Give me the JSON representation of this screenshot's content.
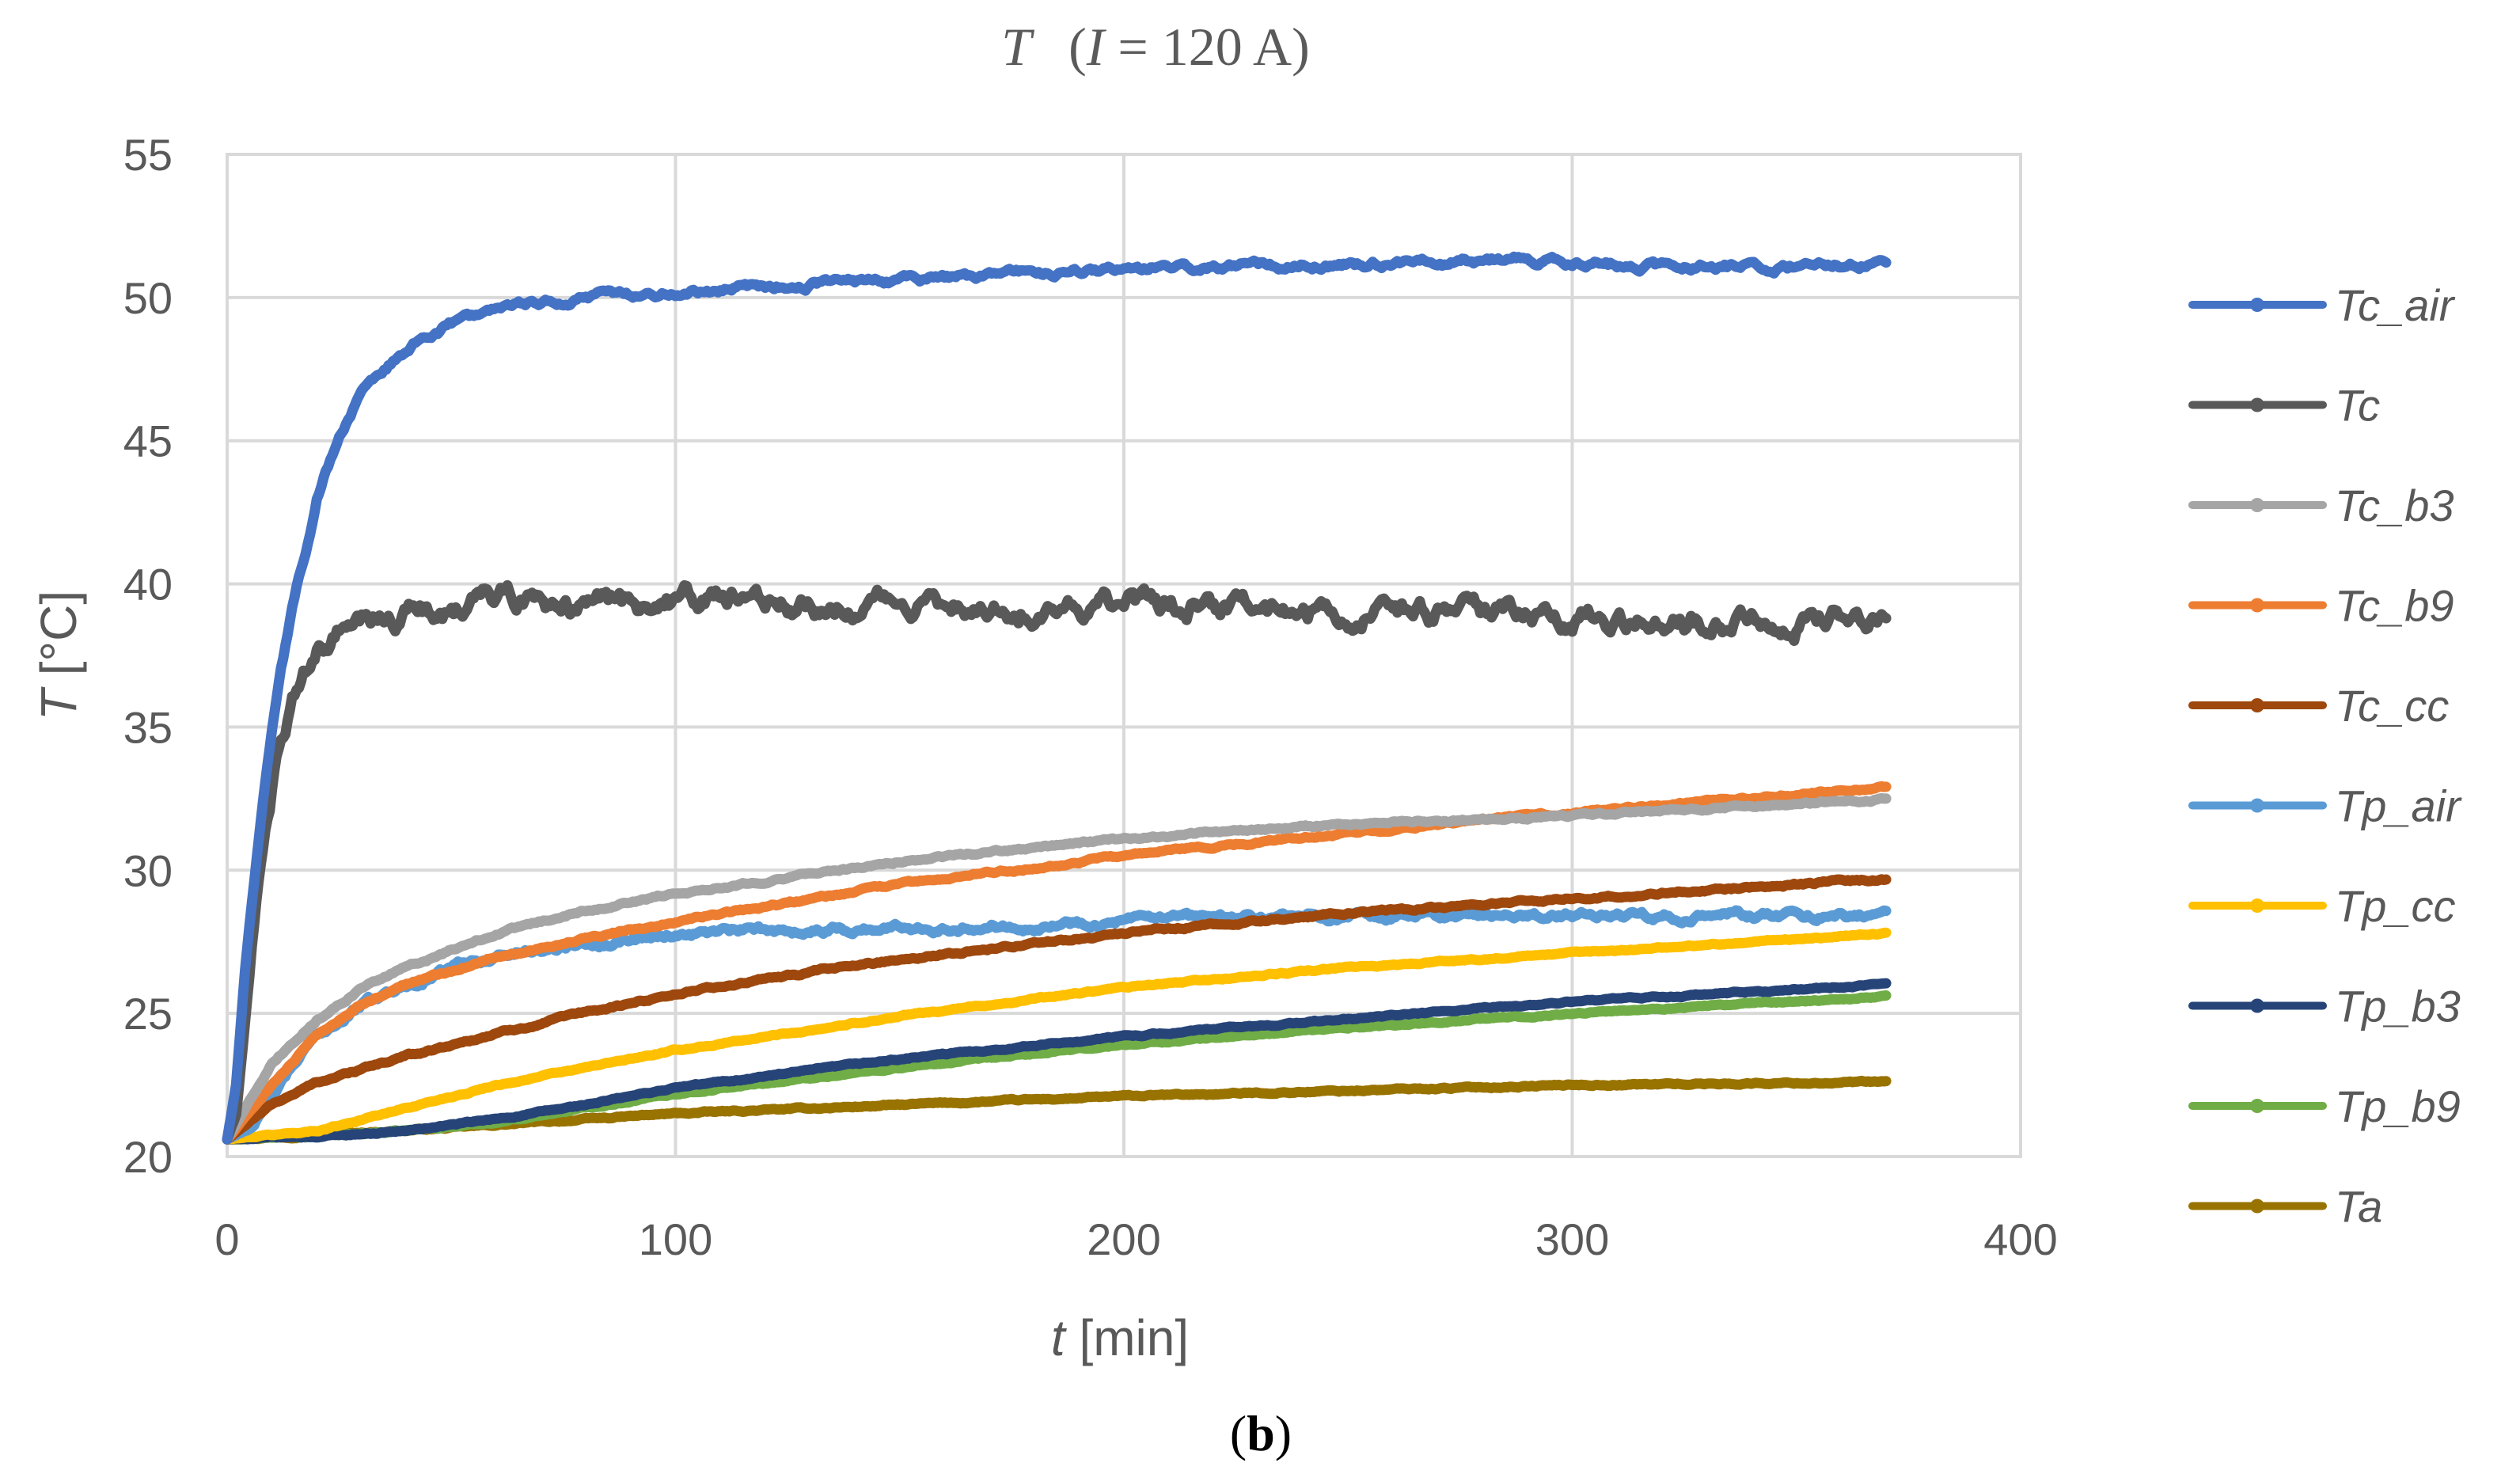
{
  "figure_caption": {
    "open": "(",
    "letter": "b",
    "close": ")"
  },
  "chart_data": {
    "type": "line",
    "title": {
      "var": "T",
      "open": "(",
      "ivar": "I",
      "rest": " = 120 A)"
    },
    "xlabel": {
      "var": "t",
      "unit": " [min]"
    },
    "ylabel": {
      "var": "T",
      "unit": " [°C]"
    },
    "xlim": [
      0,
      400
    ],
    "ylim": [
      20,
      55
    ],
    "xticks": [
      0,
      100,
      200,
      300,
      400
    ],
    "yticks": [
      20,
      25,
      30,
      35,
      40,
      45,
      50,
      55
    ],
    "grid": true,
    "legend_position": "right",
    "series": [
      {
        "name": "Tc_air",
        "color": "#4472C4",
        "noise": 0.08,
        "x": [
          0,
          2,
          4,
          6,
          8,
          10,
          12,
          15,
          18,
          20,
          25,
          30,
          35,
          40,
          45,
          50,
          60,
          70,
          80,
          90,
          100,
          120,
          150,
          200,
          250,
          290,
          300,
          320,
          370
        ],
        "y": [
          20.6,
          22.5,
          26.5,
          29.5,
          32.5,
          35.0,
          37.0,
          39.5,
          41.5,
          43.0,
          45.2,
          46.6,
          47.5,
          48.2,
          48.7,
          49.1,
          49.5,
          49.8,
          50.0,
          50.1,
          50.2,
          50.4,
          50.6,
          51.0,
          51.2,
          51.3,
          51.2,
          51.1,
          51.1
        ]
      },
      {
        "name": "Tc",
        "color": "#595959",
        "noise": 0.25,
        "x": [
          0,
          2,
          4,
          6,
          8,
          10,
          12,
          15,
          20,
          25,
          30,
          40,
          50,
          60,
          70,
          80,
          100,
          150,
          200,
          250,
          300,
          330,
          370
        ],
        "y": [
          20.6,
          21.5,
          24.5,
          28.0,
          31.0,
          33.0,
          34.5,
          36.0,
          37.5,
          38.2,
          38.5,
          38.9,
          39.2,
          39.5,
          39.4,
          39.2,
          39.4,
          39.3,
          39.3,
          39.1,
          38.9,
          38.6,
          38.8
        ]
      },
      {
        "name": "Tc_b3",
        "color": "#A5A5A5",
        "noise": 0.03,
        "x": [
          0,
          10,
          20,
          30,
          40,
          60,
          80,
          100,
          150,
          200,
          250,
          300,
          370
        ],
        "y": [
          20.6,
          23.3,
          24.8,
          25.9,
          26.6,
          27.8,
          28.6,
          29.2,
          30.3,
          31.1,
          31.6,
          31.9,
          32.5
        ]
      },
      {
        "name": "Tc_b9",
        "color": "#ED7D31",
        "noise": 0.03,
        "x": [
          0,
          10,
          20,
          30,
          40,
          60,
          80,
          100,
          150,
          200,
          250,
          300,
          370
        ],
        "y": [
          20.6,
          22.5,
          24.2,
          25.3,
          26.0,
          27.0,
          27.6,
          28.2,
          29.5,
          30.5,
          31.3,
          32.0,
          32.9
        ]
      },
      {
        "name": "Tc_cc",
        "color": "#9E480E",
        "noise": 0.03,
        "x": [
          0,
          10,
          20,
          40,
          60,
          80,
          100,
          150,
          200,
          250,
          300,
          370
        ],
        "y": [
          20.6,
          21.8,
          22.6,
          23.5,
          24.3,
          25.0,
          25.7,
          26.9,
          27.8,
          28.5,
          29.0,
          29.7
        ]
      },
      {
        "name": "Tp_air",
        "color": "#5B9BD5",
        "noise": 0.08,
        "x": [
          0,
          5,
          10,
          15,
          20,
          30,
          40,
          50,
          60,
          80,
          100,
          150,
          200,
          250,
          300,
          370
        ],
        "y": [
          20.6,
          21.0,
          22.0,
          23.2,
          24.2,
          25.3,
          26.0,
          26.6,
          27.0,
          27.5,
          27.8,
          28.0,
          28.2,
          28.4,
          28.4,
          28.4
        ]
      },
      {
        "name": "Tp_cc",
        "color": "#FFC000",
        "noise": 0.02,
        "x": [
          0,
          20,
          40,
          60,
          80,
          100,
          150,
          200,
          250,
          300,
          370
        ],
        "y": [
          20.6,
          20.9,
          21.7,
          22.5,
          23.1,
          23.7,
          24.9,
          25.9,
          26.6,
          27.1,
          27.8
        ]
      },
      {
        "name": "Tp_b3",
        "color": "#264478",
        "noise": 0.02,
        "x": [
          0,
          20,
          40,
          60,
          80,
          100,
          150,
          200,
          250,
          300,
          370
        ],
        "y": [
          20.6,
          20.7,
          20.9,
          21.3,
          21.8,
          22.4,
          23.4,
          24.2,
          24.8,
          25.4,
          26.0
        ]
      },
      {
        "name": "Tp_b9",
        "color": "#70AD47",
        "noise": 0.02,
        "x": [
          0,
          20,
          40,
          60,
          80,
          100,
          150,
          200,
          250,
          300,
          370
        ],
        "y": [
          20.6,
          20.7,
          20.9,
          21.2,
          21.7,
          22.2,
          23.1,
          23.9,
          24.5,
          25.0,
          25.6
        ]
      },
      {
        "name": "Ta",
        "color": "#997300",
        "noise": 0.02,
        "x": [
          0,
          50,
          100,
          150,
          200,
          250,
          300,
          370
        ],
        "y": [
          20.6,
          21.0,
          21.5,
          21.8,
          22.1,
          22.3,
          22.5,
          22.6
        ]
      }
    ]
  }
}
